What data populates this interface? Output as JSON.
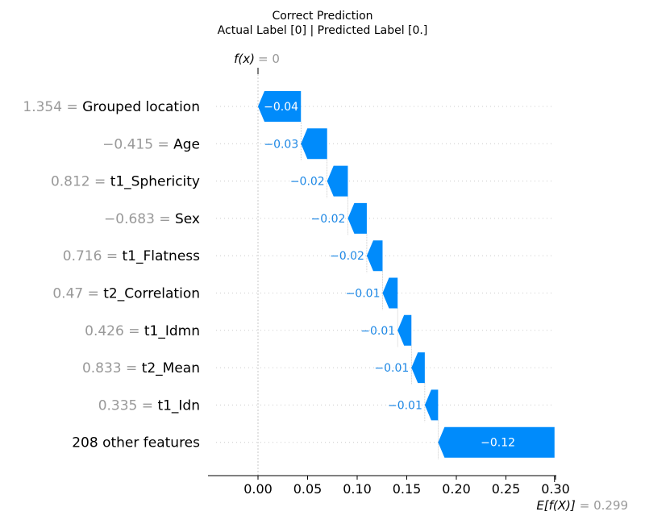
{
  "chart_data": {
    "type": "waterfall",
    "title_line1": "Correct Prediction",
    "title_line2": "Actual Label [0] | Predicted Label [0.]",
    "fx_label": "f(x)",
    "fx_value_text": "= 0",
    "fx_value": 0.0,
    "efx_label": "E[f(X)]",
    "efx_value_text": "= 0.299",
    "efx_value": 0.299,
    "xlim": [
      -0.05,
      0.3
    ],
    "xticks": [
      {
        "value": 0.0,
        "label": "0.00"
      },
      {
        "value": 0.05,
        "label": "0.05"
      },
      {
        "value": 0.1,
        "label": "0.10"
      },
      {
        "value": 0.15,
        "label": "0.15"
      },
      {
        "value": 0.2,
        "label": "0.20"
      },
      {
        "value": 0.25,
        "label": "0.25"
      },
      {
        "value": 0.3,
        "label": "0.30"
      }
    ],
    "negative_color": "#008BFB",
    "negative_text_color": "#1E88E5",
    "features": [
      {
        "value_text": "1.354 =",
        "name": "Grouped location",
        "shap": -0.04,
        "start": 0.0433,
        "end": 0.0,
        "label": "−0.04"
      },
      {
        "value_text": "−0.415 =",
        "name": "Age",
        "shap": -0.03,
        "start": 0.0697,
        "end": 0.0433,
        "label": "−0.03"
      },
      {
        "value_text": "0.812 =",
        "name": "t1_Sphericity",
        "shap": -0.02,
        "start": 0.0906,
        "end": 0.0697,
        "label": "−0.02"
      },
      {
        "value_text": "−0.683 =",
        "name": "Sex",
        "shap": -0.02,
        "start": 0.1097,
        "end": 0.0906,
        "label": "−0.02"
      },
      {
        "value_text": "0.716 =",
        "name": "t1_Flatness",
        "shap": -0.02,
        "start": 0.1256,
        "end": 0.1097,
        "label": "−0.02"
      },
      {
        "value_text": "0.47 =",
        "name": "t2_Correlation",
        "shap": -0.01,
        "start": 0.1408,
        "end": 0.1256,
        "label": "−0.01"
      },
      {
        "value_text": "0.426 =",
        "name": "t1_Idmn",
        "shap": -0.01,
        "start": 0.1547,
        "end": 0.1408,
        "label": "−0.01"
      },
      {
        "value_text": "0.833 =",
        "name": "t2_Mean",
        "shap": -0.01,
        "start": 0.1682,
        "end": 0.1547,
        "label": "−0.01"
      },
      {
        "value_text": "0.335 =",
        "name": "t1_Idn",
        "shap": -0.01,
        "start": 0.1816,
        "end": 0.1682,
        "label": "−0.01"
      },
      {
        "value_text": "",
        "name": "208 other features",
        "shap": -0.12,
        "start": 0.299,
        "end": 0.1816,
        "label": "−0.12"
      }
    ]
  }
}
